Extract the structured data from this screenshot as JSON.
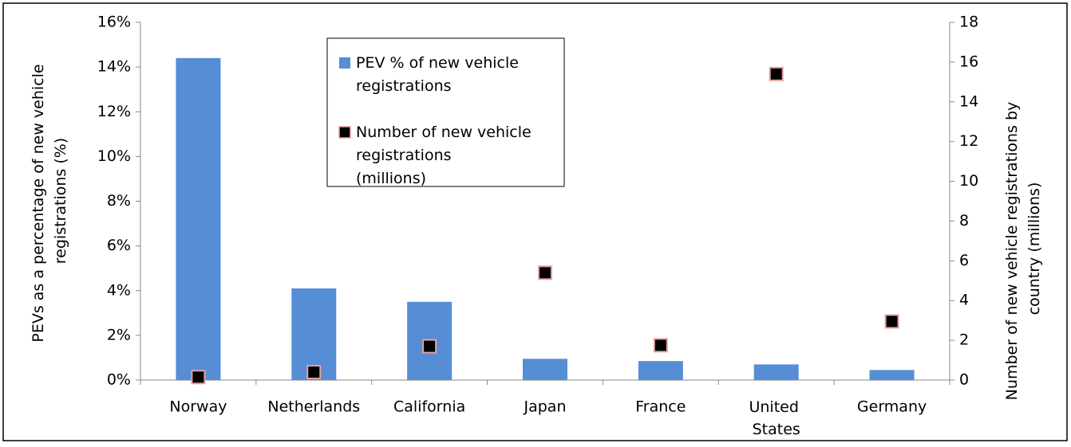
{
  "chart_data": {
    "type": "bar",
    "categories": [
      "Norway",
      "Netherlands",
      "California",
      "Japan",
      "France",
      "United States",
      "Germany"
    ],
    "series": [
      {
        "name": "PEV % of new vehicle registrations",
        "color": "#558ed5",
        "type": "bar",
        "values": [
          14.4,
          4.1,
          3.5,
          0.95,
          0.85,
          0.7,
          0.45
        ]
      },
      {
        "name": "Number of new vehicle registrations (millions)",
        "color": "#000000",
        "type": "scatter",
        "axis": "y2",
        "values": [
          0.15,
          0.4,
          1.7,
          5.4,
          1.75,
          15.4,
          2.95
        ]
      }
    ],
    "ylabel": "PEVs as a percentage of new vehicle registrations (%)",
    "y2label": "Number of new vehicle registrations by country (millions)",
    "ylim": [
      0,
      16
    ],
    "yticks": [
      {
        "value": 0,
        "label": "0%"
      },
      {
        "value": 2,
        "label": "2%"
      },
      {
        "value": 4,
        "label": "4%"
      },
      {
        "value": 6,
        "label": "6%"
      },
      {
        "value": 8,
        "label": "8%"
      },
      {
        "value": 10,
        "label": "10%"
      },
      {
        "value": 12,
        "label": "12%"
      },
      {
        "value": 14,
        "label": "14%"
      },
      {
        "value": 16,
        "label": "16%"
      }
    ],
    "y2lim": [
      0,
      18
    ],
    "y2ticks": [
      0,
      2,
      4,
      6,
      8,
      10,
      12,
      14,
      16,
      18
    ],
    "legend": "top-center"
  }
}
